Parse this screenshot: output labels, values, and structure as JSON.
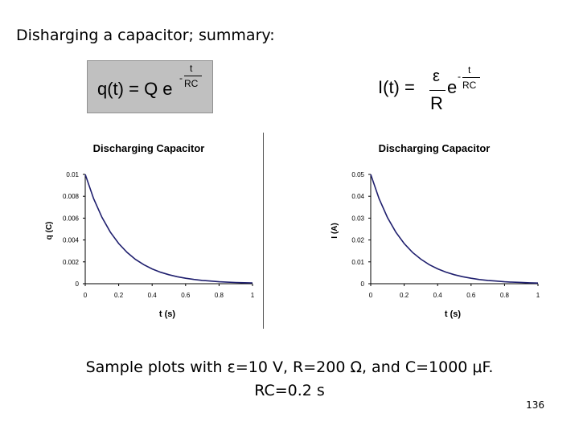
{
  "slide": {
    "title": "Disharging a capacitor; summary:",
    "caption_line1": "Sample plots with ε=10 V, R=200 Ω, and C=1000 μF.",
    "caption_line2": "RC=0.2 s",
    "page_number": "136"
  },
  "equations": {
    "charge": {
      "lhs": "q(t) = Q e",
      "exp_sign": "-",
      "exp_num": "t",
      "exp_den": "RC"
    },
    "current": {
      "lhs": "I(t) =",
      "frac_num": "ε",
      "frac_den": "R",
      "base": "e",
      "exp_sign": "-",
      "exp_num": "t",
      "exp_den": "RC"
    }
  },
  "chart_data": [
    {
      "type": "line",
      "title": "Discharging Capacitor",
      "xlabel": "t (s)",
      "ylabel": "q (C)",
      "xlim": [
        0,
        1
      ],
      "ylim": [
        0,
        0.01
      ],
      "x_ticks": [
        "0",
        "0.2",
        "0.4",
        "0.6",
        "0.8",
        "1"
      ],
      "y_ticks": [
        "0",
        "0.002",
        "0.004",
        "0.006",
        "0.008",
        "0.01"
      ],
      "x": [
        0,
        0.05,
        0.1,
        0.15,
        0.2,
        0.25,
        0.3,
        0.35,
        0.4,
        0.45,
        0.5,
        0.55,
        0.6,
        0.65,
        0.7,
        0.75,
        0.8,
        0.85,
        0.9,
        0.95,
        1.0
      ],
      "series": [
        {
          "values": [
            0.01,
            0.00779,
            0.00607,
            0.00472,
            0.00368,
            0.00287,
            0.00223,
            0.00174,
            0.00135,
            0.00105,
            0.00082,
            0.00064,
            0.0005,
            0.00039,
            0.0003,
            0.00024,
            0.00018,
            0.00014,
            0.00011,
            9e-05,
            7e-05
          ],
          "color": "#1f1f6e"
        }
      ],
      "grid": false
    },
    {
      "type": "line",
      "title": "Discharging Capacitor",
      "xlabel": "t (s)",
      "ylabel": "I (A)",
      "xlim": [
        0,
        1
      ],
      "ylim": [
        0,
        0.05
      ],
      "x_ticks": [
        "0",
        "0.2",
        "0.4",
        "0.6",
        "0.8",
        "1"
      ],
      "y_ticks": [
        "0",
        "0.01",
        "0.02",
        "0.03",
        "0.04",
        "0.05"
      ],
      "x": [
        0,
        0.05,
        0.1,
        0.15,
        0.2,
        0.25,
        0.3,
        0.35,
        0.4,
        0.45,
        0.5,
        0.55,
        0.6,
        0.65,
        0.7,
        0.75,
        0.8,
        0.85,
        0.9,
        0.95,
        1.0
      ],
      "series": [
        {
          "values": [
            0.05,
            0.0389,
            0.0303,
            0.0236,
            0.0184,
            0.0143,
            0.0112,
            0.0087,
            0.0068,
            0.0053,
            0.0041,
            0.0032,
            0.0025,
            0.0019,
            0.0015,
            0.0012,
            0.0009,
            0.0007,
            0.0006,
            0.0004,
            0.0003
          ],
          "color": "#1f1f6e"
        }
      ],
      "grid": false
    }
  ]
}
